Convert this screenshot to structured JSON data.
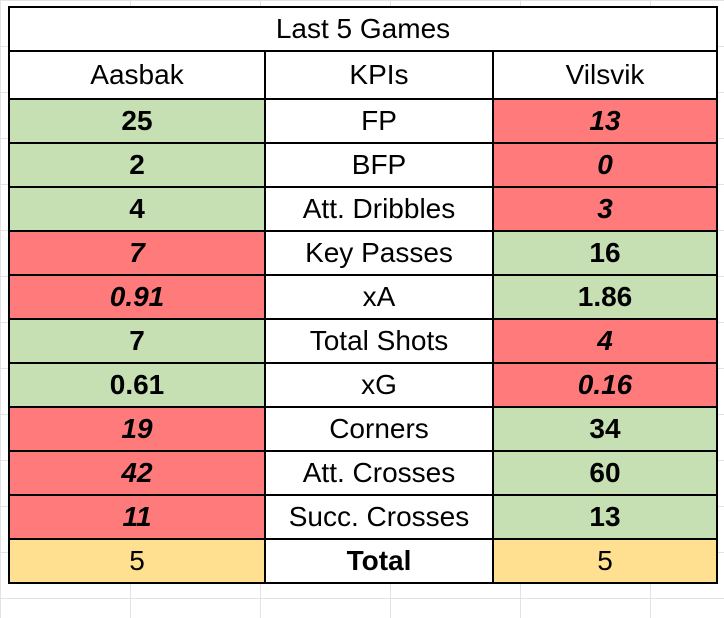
{
  "title": "Last 5 Games",
  "headers": {
    "left": "Aasbak",
    "middle": "KPIs",
    "right": "Vilsvik"
  },
  "rows": [
    {
      "kpi": "FP",
      "aasbak": "25",
      "vilsvik": "13",
      "aasbak_status": "good",
      "vilsvik_status": "bad"
    },
    {
      "kpi": "BFP",
      "aasbak": "2",
      "vilsvik": "0",
      "aasbak_status": "good",
      "vilsvik_status": "bad"
    },
    {
      "kpi": "Att. Dribbles",
      "aasbak": "4",
      "vilsvik": "3",
      "aasbak_status": "good",
      "vilsvik_status": "bad"
    },
    {
      "kpi": "Key Passes",
      "aasbak": "7",
      "vilsvik": "16",
      "aasbak_status": "bad",
      "vilsvik_status": "good"
    },
    {
      "kpi": "xA",
      "aasbak": "0.91",
      "vilsvik": "1.86",
      "aasbak_status": "bad",
      "vilsvik_status": "good"
    },
    {
      "kpi": "Total Shots",
      "aasbak": "7",
      "vilsvik": "4",
      "aasbak_status": "good",
      "vilsvik_status": "bad"
    },
    {
      "kpi": "xG",
      "aasbak": "0.61",
      "vilsvik": "0.16",
      "aasbak_status": "good",
      "vilsvik_status": "bad"
    },
    {
      "kpi": "Corners",
      "aasbak": "19",
      "vilsvik": "34",
      "aasbak_status": "bad",
      "vilsvik_status": "good"
    },
    {
      "kpi": "Att. Crosses",
      "aasbak": "42",
      "vilsvik": "60",
      "aasbak_status": "bad",
      "vilsvik_status": "good"
    },
    {
      "kpi": "Succ. Crosses",
      "aasbak": "11",
      "vilsvik": "13",
      "aasbak_status": "bad",
      "vilsvik_status": "good"
    }
  ],
  "total": {
    "label": "Total",
    "aasbak": "5",
    "vilsvik": "5"
  },
  "colors": {
    "good_fill": "#c6e0b4",
    "good_text": "#3a5f25",
    "bad_fill": "#ff7b7b",
    "bad_text": "#b40000",
    "total_fill": "#ffe090"
  }
}
